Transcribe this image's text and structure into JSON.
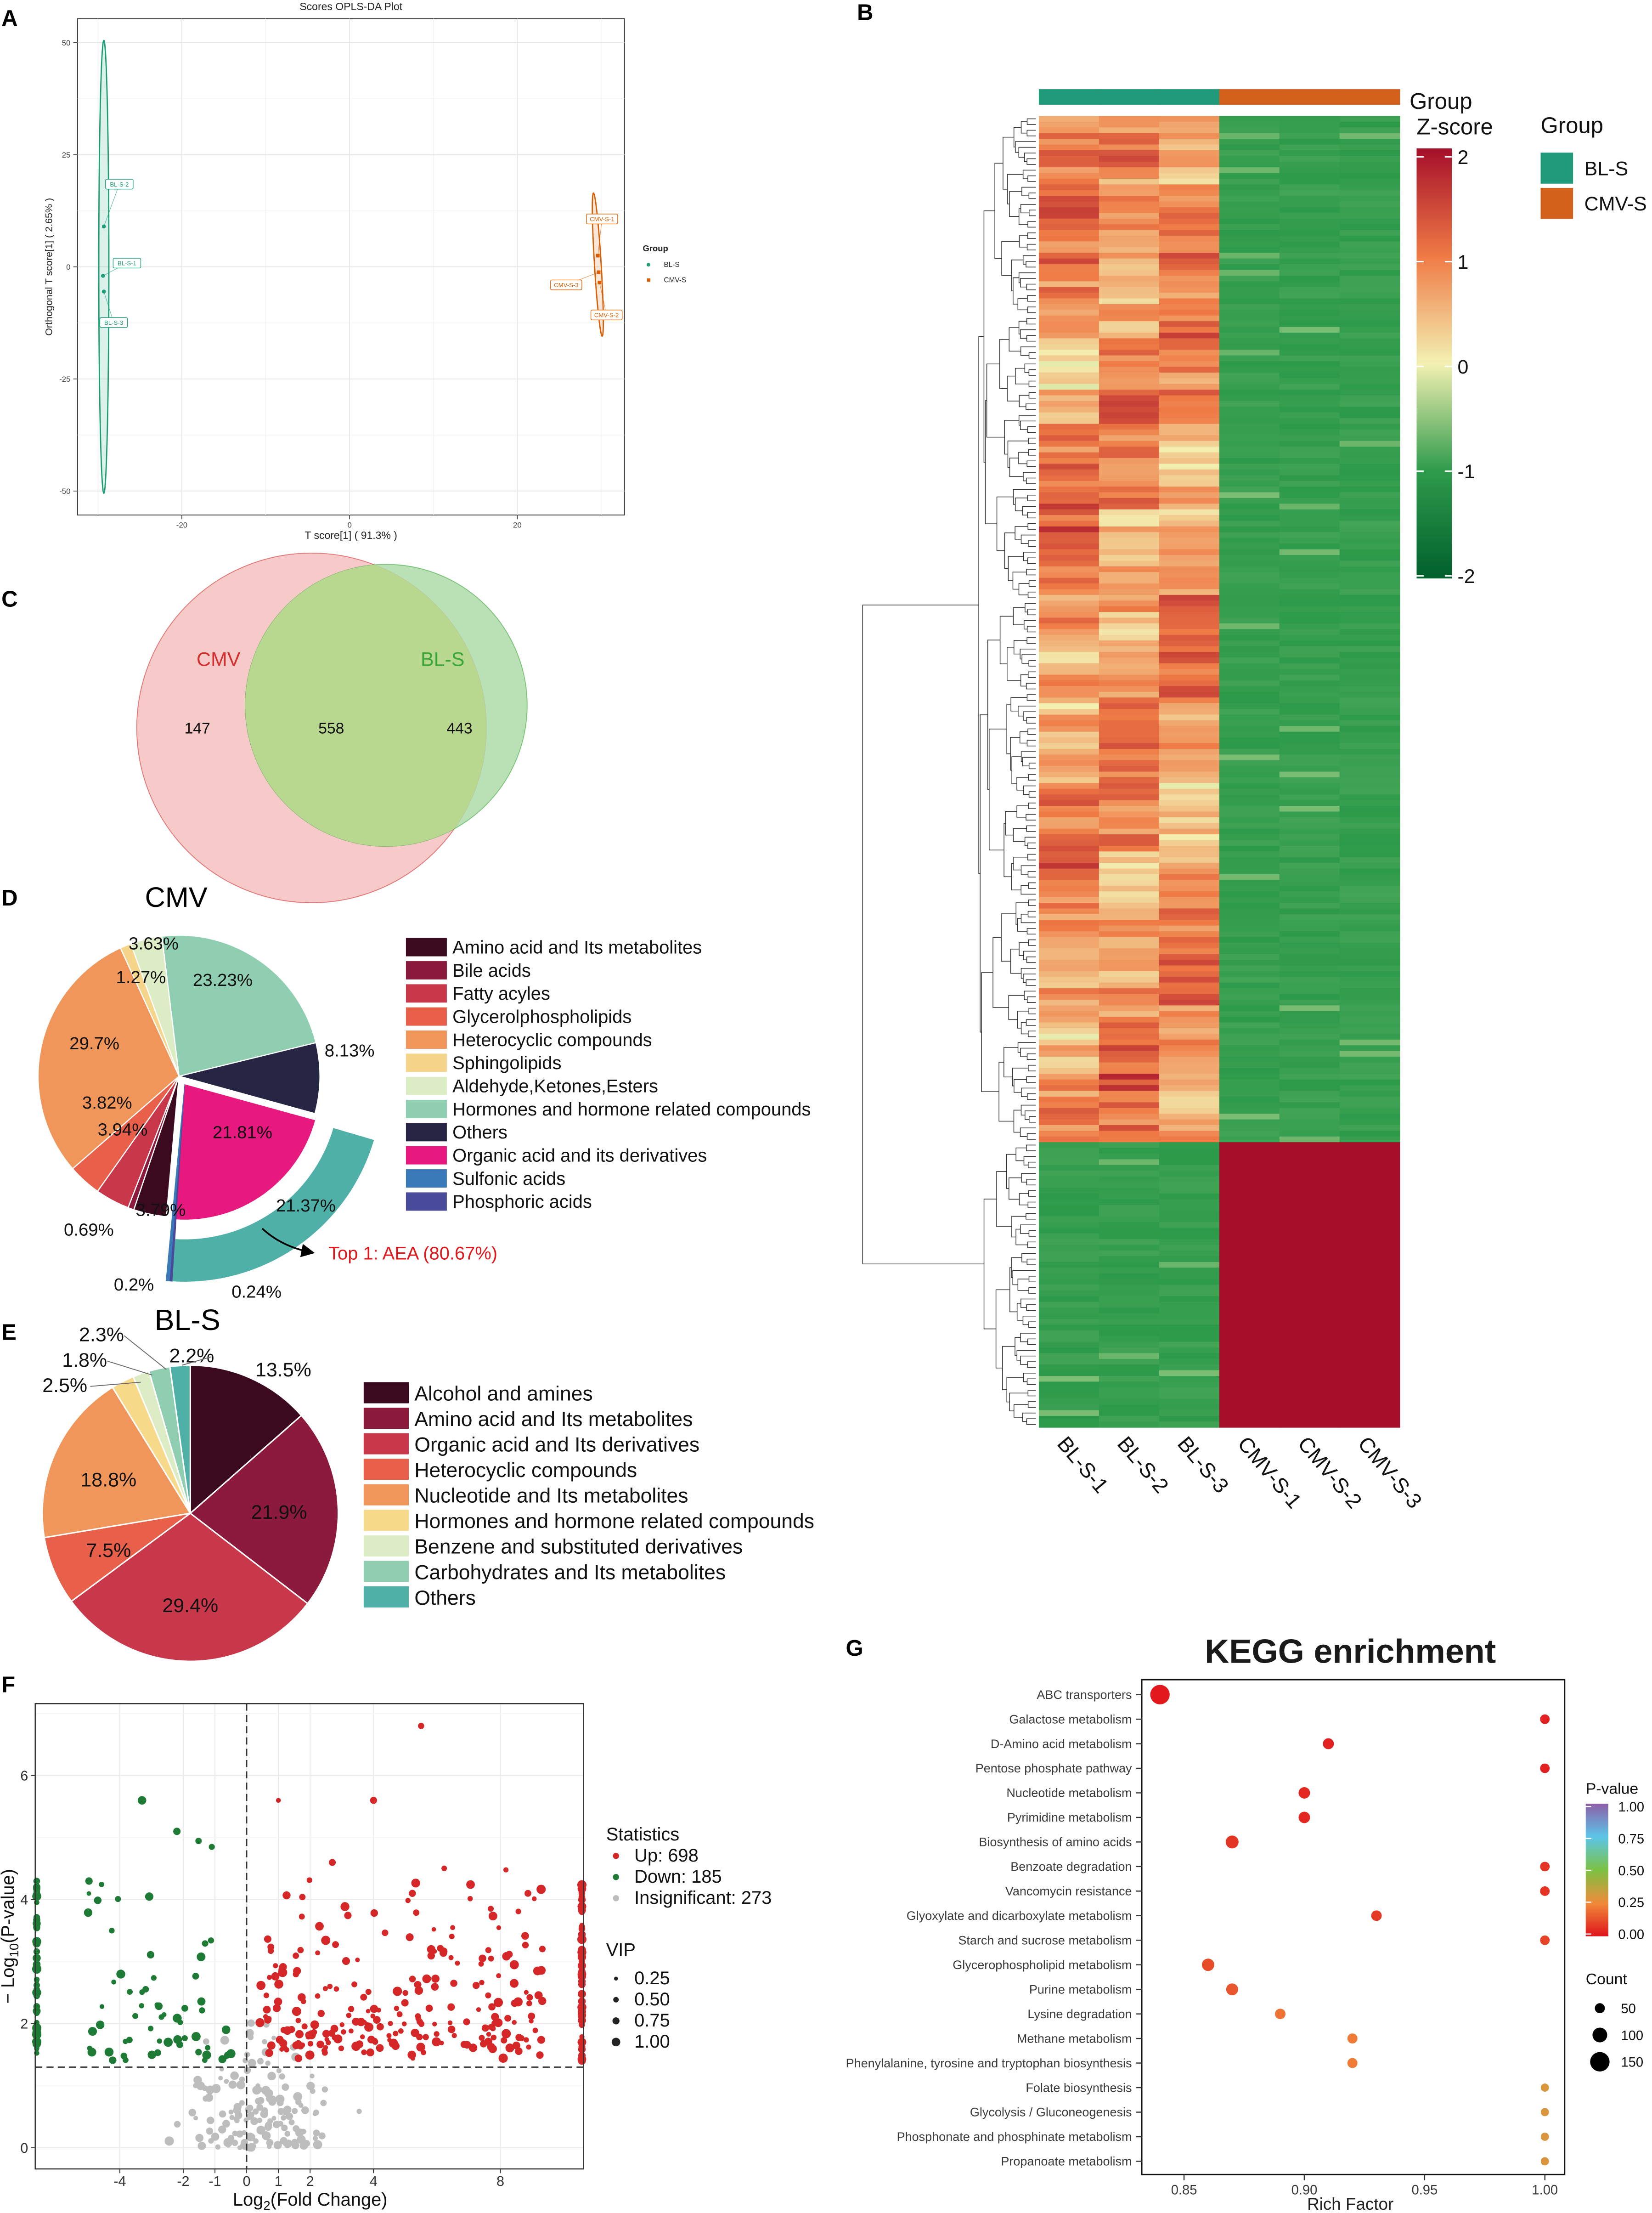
{
  "panel_labels": {
    "A": "A",
    "B": "B",
    "C": "C",
    "D": "D",
    "E": "E",
    "F": "F",
    "G": "G"
  },
  "chart_data": [
    {
      "panel": "A",
      "type": "scatter",
      "title": "Scores OPLS-DA Plot",
      "xlabel": "T score[1] ( 91.3% )",
      "ylabel": "Orthogonal T score[1] ( 2.65% )",
      "xticks": [
        -20,
        0,
        20
      ],
      "yticks": [
        50,
        25,
        0,
        -25,
        -50
      ],
      "xlim": [
        -32.4,
        32.8
      ],
      "ylim": [
        -55.3,
        55.3
      ],
      "grid": true,
      "legend": {
        "title": "Group",
        "placement": "right"
      },
      "series": [
        {
          "name": "BL-S",
          "color": "#1b9e77",
          "marker": "circle",
          "points": [
            {
              "label": "BL-S-1",
              "x": -29.4,
              "y": -2
            },
            {
              "label": "BL-S-2",
              "x": -29.3,
              "y": 9
            },
            {
              "label": "BL-S-3",
              "x": -29.3,
              "y": -5.5
            }
          ],
          "ellipse": {
            "cx": -29.3,
            "cy": 0,
            "rx": 0.6,
            "ry": 50.5
          }
        },
        {
          "name": "CMV-S",
          "color": "#d95f02",
          "marker": "square",
          "points": [
            {
              "label": "CMV-S-1",
              "x": 29.6,
              "y": 2.5
            },
            {
              "label": "CMV-S-2",
              "x": 29.8,
              "y": -3.5
            },
            {
              "label": "CMV-S-3",
              "x": 29.7,
              "y": -1.2
            }
          ],
          "ellipse": {
            "cx": 29.6,
            "cy": 0.5,
            "rx": 0.4,
            "ry": 16
          }
        }
      ]
    },
    {
      "panel": "B",
      "type": "heatmap",
      "columns": [
        "BL-S-1",
        "BL-S-2",
        "BL-S-3",
        "CMV-S-1",
        "CMV-S-2",
        "CMV-S-3"
      ],
      "column_groups": [
        "BL-S",
        "BL-S",
        "BL-S",
        "CMV-S",
        "CMV-S",
        "CMV-S"
      ],
      "group_annotation_label": "Group",
      "colorbar": {
        "title": "Z-score",
        "ticks": [
          "2",
          "1",
          "0",
          "-1",
          "-2"
        ],
        "range": [
          -2,
          2
        ]
      },
      "legend": {
        "title": "Group",
        "items": [
          {
            "name": "BL-S",
            "color": "#1f9a7a"
          },
          {
            "name": "CMV-S",
            "color": "#d2601a"
          }
        ]
      }
    },
    {
      "panel": "C",
      "type": "venn",
      "sets": [
        {
          "name": "CMV",
          "color": "#d32f2f",
          "fill": "#f4b8b8"
        },
        {
          "name": "BL-S",
          "color": "#3aa63a",
          "fill": "#a9d8a2"
        }
      ],
      "only_first": "147",
      "intersection": "558",
      "only_second": "443"
    },
    {
      "panel": "D",
      "type": "pie",
      "title": "CMV",
      "slices": [
        {
          "name": "Amino acid and Its metabolites",
          "value": 3.79,
          "pct": "3.79%",
          "color": "#3b0a1e"
        },
        {
          "name": "Bile acids",
          "value": 0.69,
          "pct": "0.69%",
          "color": "#8b1a3c"
        },
        {
          "name": "Fatty acyles",
          "value": 3.94,
          "pct": "3.94%",
          "color": "#c8374a"
        },
        {
          "name": "Glycerolphospholipids",
          "value": 3.82,
          "pct": "3.82%",
          "color": "#e8604a"
        },
        {
          "name": "Heterocyclic compounds",
          "value": 29.7,
          "pct": "29.7%",
          "color": "#f0965a"
        },
        {
          "name": "Sphingolipids",
          "value": 1.27,
          "pct": "1.27%",
          "color": "#f5d58a"
        },
        {
          "name": "Aldehyde,Ketones,Esters",
          "value": 3.63,
          "pct": "3.63%",
          "color": "#dcecc4"
        },
        {
          "name": "Hormones and hormone related compounds",
          "value": 23.23,
          "pct": "23.23%",
          "color": "#8fceb0"
        },
        {
          "name": "Others",
          "value": 8.13,
          "pct": "8.13%",
          "color": "#262644"
        },
        {
          "name": "Organic acid and its derivatives",
          "value": 21.81,
          "pct": "21.81%",
          "color": "#e8197e"
        },
        {
          "name": "Sulfonic acids",
          "value": 0.2,
          "pct": "0.2%",
          "color": "#3a7ab8"
        },
        {
          "name": "Phosphoric acids",
          "value": 0.24,
          "pct": "0.24%",
          "color": "#4a4a9a"
        }
      ],
      "draw_order": [
        7,
        8,
        9,
        11,
        10,
        0,
        1,
        2,
        3,
        4,
        5,
        6
      ],
      "exploded": [
        9,
        10,
        11
      ],
      "highlight": {
        "ring_pct": "21.37%",
        "ring_color": "#4fb0a8",
        "annotation": "Top 1: AEA (80.67%)",
        "annotation_color": "#e0191e"
      }
    },
    {
      "panel": "E",
      "type": "pie",
      "title": "BL-S",
      "slices": [
        {
          "name": "Alcohol and amines",
          "value": 13.5,
          "pct": "13.5%",
          "color": "#3b0a1e"
        },
        {
          "name": "Amino acid and Its metabolites",
          "value": 21.9,
          "pct": "21.9%",
          "color": "#8b1a3c"
        },
        {
          "name": "Organic acid and Its derivatives",
          "value": 29.4,
          "pct": "29.4%",
          "color": "#c8374a"
        },
        {
          "name": "Heterocyclic compounds",
          "value": 7.5,
          "pct": "7.5%",
          "color": "#e8604a"
        },
        {
          "name": "Nucleotide and Its metabolites",
          "value": 18.8,
          "pct": "18.8%",
          "color": "#f0965a"
        },
        {
          "name": "Hormones and hormone related compounds",
          "value": 2.5,
          "pct": "2.5%",
          "color": "#f7d98a"
        },
        {
          "name": "Benzene and substituted derivatives",
          "value": 1.8,
          "pct": "1.8%",
          "color": "#dcecc4"
        },
        {
          "name": "Carbohydrates and Its metabolites",
          "value": 2.3,
          "pct": "2.3%",
          "color": "#8fceb0"
        },
        {
          "name": "Others",
          "value": 2.2,
          "pct": "2.2%",
          "color": "#4fb0a8"
        }
      ]
    },
    {
      "panel": "F",
      "type": "scatter",
      "subtype": "volcano",
      "xlabel_parts": [
        "Log",
        "2",
        "(Fold Change)"
      ],
      "ylabel_parts": [
        "− Log",
        "10",
        "(P-value)"
      ],
      "xticks": [
        "-4",
        "-2",
        "-1",
        "0",
        "1",
        "2",
        "4",
        "8"
      ],
      "xtick_values": [
        -4,
        -2,
        -1,
        0,
        1,
        2,
        4,
        8
      ],
      "yticks": [
        "0",
        "2",
        "4",
        "6"
      ],
      "ytick_values": [
        0,
        2,
        4,
        6
      ],
      "xlim": [
        -6.67,
        10.62
      ],
      "ylim": [
        -0.34,
        7.16
      ],
      "thresholds": {
        "log2fc": 0,
        "neg_log10_p": 1.3
      },
      "legend": {
        "title": "Statistics",
        "items": [
          {
            "label": "Up: 698",
            "color": "#d62728",
            "count": 698
          },
          {
            "label": "Down: 185",
            "color": "#1e7b35",
            "count": 185
          },
          {
            "label": "Insignificant: 273",
            "color": "#bdbdbd",
            "count": 273
          }
        ]
      },
      "vip_legend": {
        "title": "VIP",
        "values": [
          "0.25",
          "0.50",
          "0.75",
          "1.00"
        ]
      }
    },
    {
      "panel": "G",
      "type": "scatter",
      "subtype": "bubble",
      "title": "KEGG enrichment",
      "xlabel": "Rich Factor",
      "xticks": [
        "0.85",
        "0.90",
        "0.95",
        "1.00"
      ],
      "xtick_values": [
        0.85,
        0.9,
        0.95,
        1.0
      ],
      "xlim": [
        0.8324,
        1.0082
      ],
      "colorbar": {
        "title": "P-value",
        "ticks": [
          "1.00",
          "0.75",
          "0.50",
          "0.25",
          "0.00"
        ]
      },
      "size_legend": {
        "title": "Count",
        "values": [
          "50",
          "100",
          "150"
        ]
      },
      "rows": [
        {
          "pathway": "ABC transporters",
          "rich_factor": 0.84,
          "p_value": 0.01,
          "count": 150
        },
        {
          "pathway": "Galactose metabolism",
          "rich_factor": 1.0,
          "p_value": 0.03,
          "count": 45
        },
        {
          "pathway": "D-Amino acid metabolism",
          "rich_factor": 0.91,
          "p_value": 0.03,
          "count": 60
        },
        {
          "pathway": "Pentose phosphate pathway",
          "rich_factor": 1.0,
          "p_value": 0.03,
          "count": 45
        },
        {
          "pathway": "Nucleotide metabolism",
          "rich_factor": 0.9,
          "p_value": 0.04,
          "count": 65
        },
        {
          "pathway": "Pyrimidine metabolism",
          "rich_factor": 0.9,
          "p_value": 0.04,
          "count": 65
        },
        {
          "pathway": "Biosynthesis of amino acids",
          "rich_factor": 0.87,
          "p_value": 0.07,
          "count": 80
        },
        {
          "pathway": "Benzoate degradation",
          "rich_factor": 1.0,
          "p_value": 0.07,
          "count": 45
        },
        {
          "pathway": "Vancomycin resistance",
          "rich_factor": 1.0,
          "p_value": 0.07,
          "count": 45
        },
        {
          "pathway": "Glyoxylate and dicarboxylate metabolism",
          "rich_factor": 0.93,
          "p_value": 0.08,
          "count": 55
        },
        {
          "pathway": "Starch and sucrose metabolism",
          "rich_factor": 1.0,
          "p_value": 0.1,
          "count": 45
        },
        {
          "pathway": "Glycerophospholipid metabolism",
          "rich_factor": 0.86,
          "p_value": 0.12,
          "count": 75
        },
        {
          "pathway": "Purine metabolism",
          "rich_factor": 0.87,
          "p_value": 0.14,
          "count": 70
        },
        {
          "pathway": "Lysine degradation",
          "rich_factor": 0.89,
          "p_value": 0.2,
          "count": 55
        },
        {
          "pathway": "Methane metabolism",
          "rich_factor": 0.92,
          "p_value": 0.22,
          "count": 50
        },
        {
          "pathway": "Phenylalanine, tyrosine and tryptophan biosynthesis",
          "rich_factor": 0.92,
          "p_value": 0.22,
          "count": 50
        },
        {
          "pathway": "Folate biosynthesis",
          "rich_factor": 1.0,
          "p_value": 0.3,
          "count": 30
        },
        {
          "pathway": "Glycolysis / Gluconeogenesis",
          "rich_factor": 1.0,
          "p_value": 0.3,
          "count": 30
        },
        {
          "pathway": "Phosphonate and phosphinate metabolism",
          "rich_factor": 1.0,
          "p_value": 0.3,
          "count": 30
        },
        {
          "pathway": "Propanoate metabolism",
          "rich_factor": 1.0,
          "p_value": 0.3,
          "count": 30
        }
      ]
    }
  ]
}
